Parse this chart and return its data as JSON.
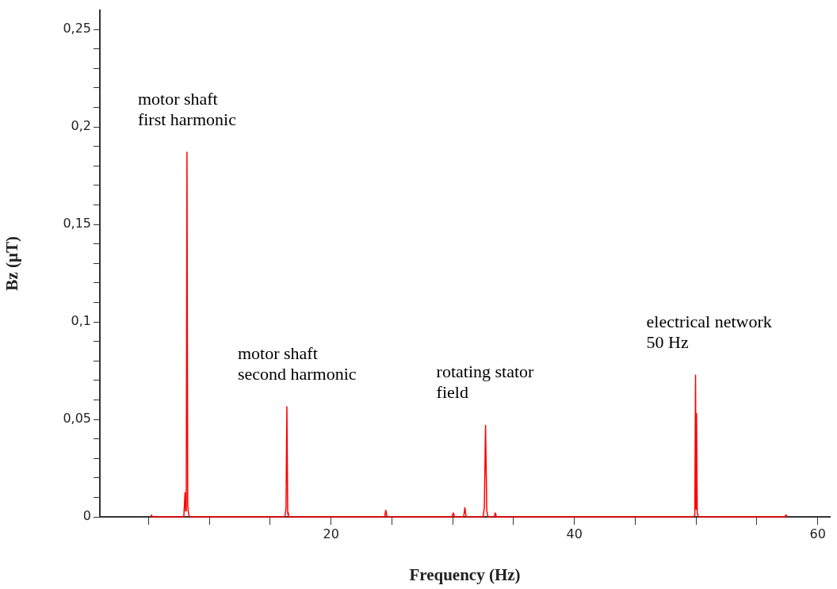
{
  "chart_data": {
    "type": "line",
    "xlabel": "Frequency (Hz)",
    "ylabel": "Bz (µT)",
    "x": [
      5.2,
      5.25,
      5.3,
      7.9,
      8.0,
      8.05,
      8.1,
      8.16,
      8.22,
      8.3,
      8.4,
      16.2,
      16.3,
      16.37,
      16.44,
      16.5,
      24.4,
      24.5,
      24.6,
      29.95,
      30.05,
      30.15,
      30.9,
      31.0,
      31.1,
      32.5,
      32.6,
      32.7,
      32.8,
      32.9,
      33.4,
      33.5,
      33.6,
      49.8,
      49.9,
      49.96,
      50.0,
      50.04,
      50.1,
      50.2,
      57.3,
      57.4,
      57.5
    ],
    "series": [
      {
        "color": "#ff0000",
        "values": [
          0,
          0.001,
          0,
          0,
          0.0124,
          0.003,
          0.005,
          0.187,
          0.006,
          0.001,
          0,
          0,
          0.004,
          0.0565,
          0.002,
          0,
          0,
          0.0034,
          0,
          0,
          0.002,
          0,
          0,
          0.0047,
          0,
          0,
          0.005,
          0.047,
          0.003,
          0,
          0,
          0.002,
          0,
          0,
          0.001,
          0.0727,
          0.004,
          0.053,
          0.002,
          0,
          0,
          0.001,
          0
        ]
      }
    ],
    "xlim": [
      1,
      61
    ],
    "xticks": [
      {
        "value": 5,
        "label": null
      },
      {
        "value": 10,
        "label": null
      },
      {
        "value": 15,
        "label": null
      },
      20,
      {
        "value": 25,
        "label": null
      },
      {
        "value": 30,
        "label": null
      },
      {
        "value": 35,
        "label": null
      },
      40,
      {
        "value": 45,
        "label": null
      },
      {
        "value": 50,
        "label": null
      },
      {
        "value": 55,
        "label": null
      },
      60
    ],
    "ylim": [
      0,
      0.26
    ],
    "yticks": [
      0,
      {
        "value": 0.01,
        "label": null
      },
      {
        "value": 0.02,
        "label": null
      },
      {
        "value": 0.03,
        "label": null
      },
      {
        "value": 0.04,
        "label": null
      },
      {
        "value": 0.05,
        "label": "0,05"
      },
      {
        "value": 0.06,
        "label": null
      },
      {
        "value": 0.07,
        "label": null
      },
      {
        "value": 0.08,
        "label": null
      },
      {
        "value": 0.09,
        "label": null
      },
      {
        "value": 0.1,
        "label": "0,1"
      },
      {
        "value": 0.11,
        "label": null
      },
      {
        "value": 0.12,
        "label": null
      },
      {
        "value": 0.13,
        "label": null
      },
      {
        "value": 0.14,
        "label": null
      },
      {
        "value": 0.15,
        "label": "0,15"
      },
      {
        "value": 0.16,
        "label": null
      },
      {
        "value": 0.17,
        "label": null
      },
      {
        "value": 0.18,
        "label": null
      },
      {
        "value": 0.19,
        "label": null
      },
      {
        "value": 0.2,
        "label": "0,2"
      },
      {
        "value": 0.21,
        "label": null
      },
      {
        "value": 0.22,
        "label": null
      },
      {
        "value": 0.23,
        "label": null
      },
      {
        "value": 0.24,
        "label": null
      },
      {
        "value": 0.25,
        "label": "0,25"
      }
    ],
    "annotations": [
      {
        "text": "motor shaft\nfirst harmonic",
        "x": 8.16,
        "y": 0.187
      },
      {
        "text": "motor shaft\nsecond harmonic",
        "x": 16.37,
        "y": 0.0565
      },
      {
        "text": "rotating stator\nfield",
        "x": 32.7,
        "y": 0.047
      },
      {
        "text": "electrical network\n50 Hz",
        "x": 49.96,
        "y": 0.0727
      }
    ],
    "grid": false,
    "legend": false,
    "marker": "none",
    "line_style": "solid"
  }
}
